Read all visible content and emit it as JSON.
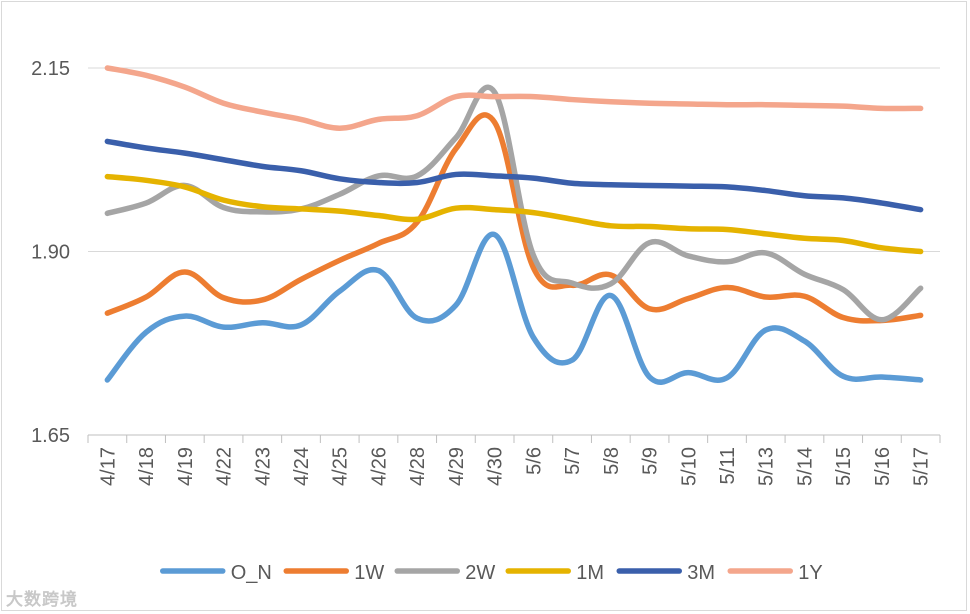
{
  "chart_data": {
    "type": "line",
    "title": "",
    "xlabel": "",
    "ylabel": "",
    "ylim": [
      1.65,
      2.15
    ],
    "yticks": [
      1.65,
      1.9,
      2.15
    ],
    "ytick_labels": [
      "1.65",
      "1.90",
      "2.15"
    ],
    "grid": true,
    "legend_position": "bottom",
    "categories": [
      "4/17",
      "4/18",
      "4/19",
      "4/22",
      "4/23",
      "4/24",
      "4/25",
      "4/26",
      "4/28",
      "4/29",
      "4/30",
      "5/6",
      "5/7",
      "5/8",
      "5/9",
      "5/10",
      "5/11",
      "5/13",
      "5/14",
      "5/15",
      "5/16",
      "5/17"
    ],
    "series": [
      {
        "name": "O_N",
        "color": "#5b9bd5",
        "values": [
          1.725,
          1.79,
          1.812,
          1.797,
          1.803,
          1.8,
          1.846,
          1.874,
          1.809,
          1.827,
          1.923,
          1.783,
          1.752,
          1.84,
          1.729,
          1.735,
          1.728,
          1.793,
          1.778,
          1.73,
          1.729,
          1.725
        ]
      },
      {
        "name": "1W",
        "color": "#ed7d31",
        "values": [
          1.816,
          1.838,
          1.872,
          1.837,
          1.834,
          1.862,
          1.888,
          1.911,
          1.94,
          2.04,
          2.076,
          1.878,
          1.854,
          1.868,
          1.822,
          1.836,
          1.851,
          1.838,
          1.839,
          1.81,
          1.806,
          1.813
        ]
      },
      {
        "name": "2W",
        "color": "#a5a5a5",
        "values": [
          1.952,
          1.966,
          1.99,
          1.96,
          1.954,
          1.958,
          1.978,
          2.003,
          2.003,
          2.055,
          2.117,
          1.895,
          1.857,
          1.856,
          1.912,
          1.894,
          1.886,
          1.898,
          1.869,
          1.848,
          1.807,
          1.85
        ]
      },
      {
        "name": "1M",
        "color": "#e5b300",
        "values": [
          2.002,
          1.997,
          1.988,
          1.97,
          1.961,
          1.958,
          1.955,
          1.949,
          1.944,
          1.959,
          1.957,
          1.953,
          1.944,
          1.935,
          1.934,
          1.931,
          1.93,
          1.924,
          1.918,
          1.915,
          1.905,
          1.9
        ]
      },
      {
        "name": "3M",
        "color": "#3a5fab",
        "values": [
          2.05,
          2.041,
          2.034,
          2.025,
          2.016,
          2.01,
          1.999,
          1.994,
          1.994,
          2.005,
          2.003,
          2.0,
          1.993,
          1.991,
          1.99,
          1.989,
          1.988,
          1.983,
          1.976,
          1.973,
          1.966,
          1.957
        ]
      },
      {
        "name": "1Y",
        "color": "#f4a68c",
        "values": [
          2.15,
          2.14,
          2.124,
          2.102,
          2.09,
          2.08,
          2.068,
          2.08,
          2.085,
          2.111,
          2.111,
          2.111,
          2.107,
          2.104,
          2.102,
          2.101,
          2.1,
          2.1,
          2.099,
          2.098,
          2.095,
          2.095
        ]
      }
    ]
  },
  "watermark": "大数跨境"
}
